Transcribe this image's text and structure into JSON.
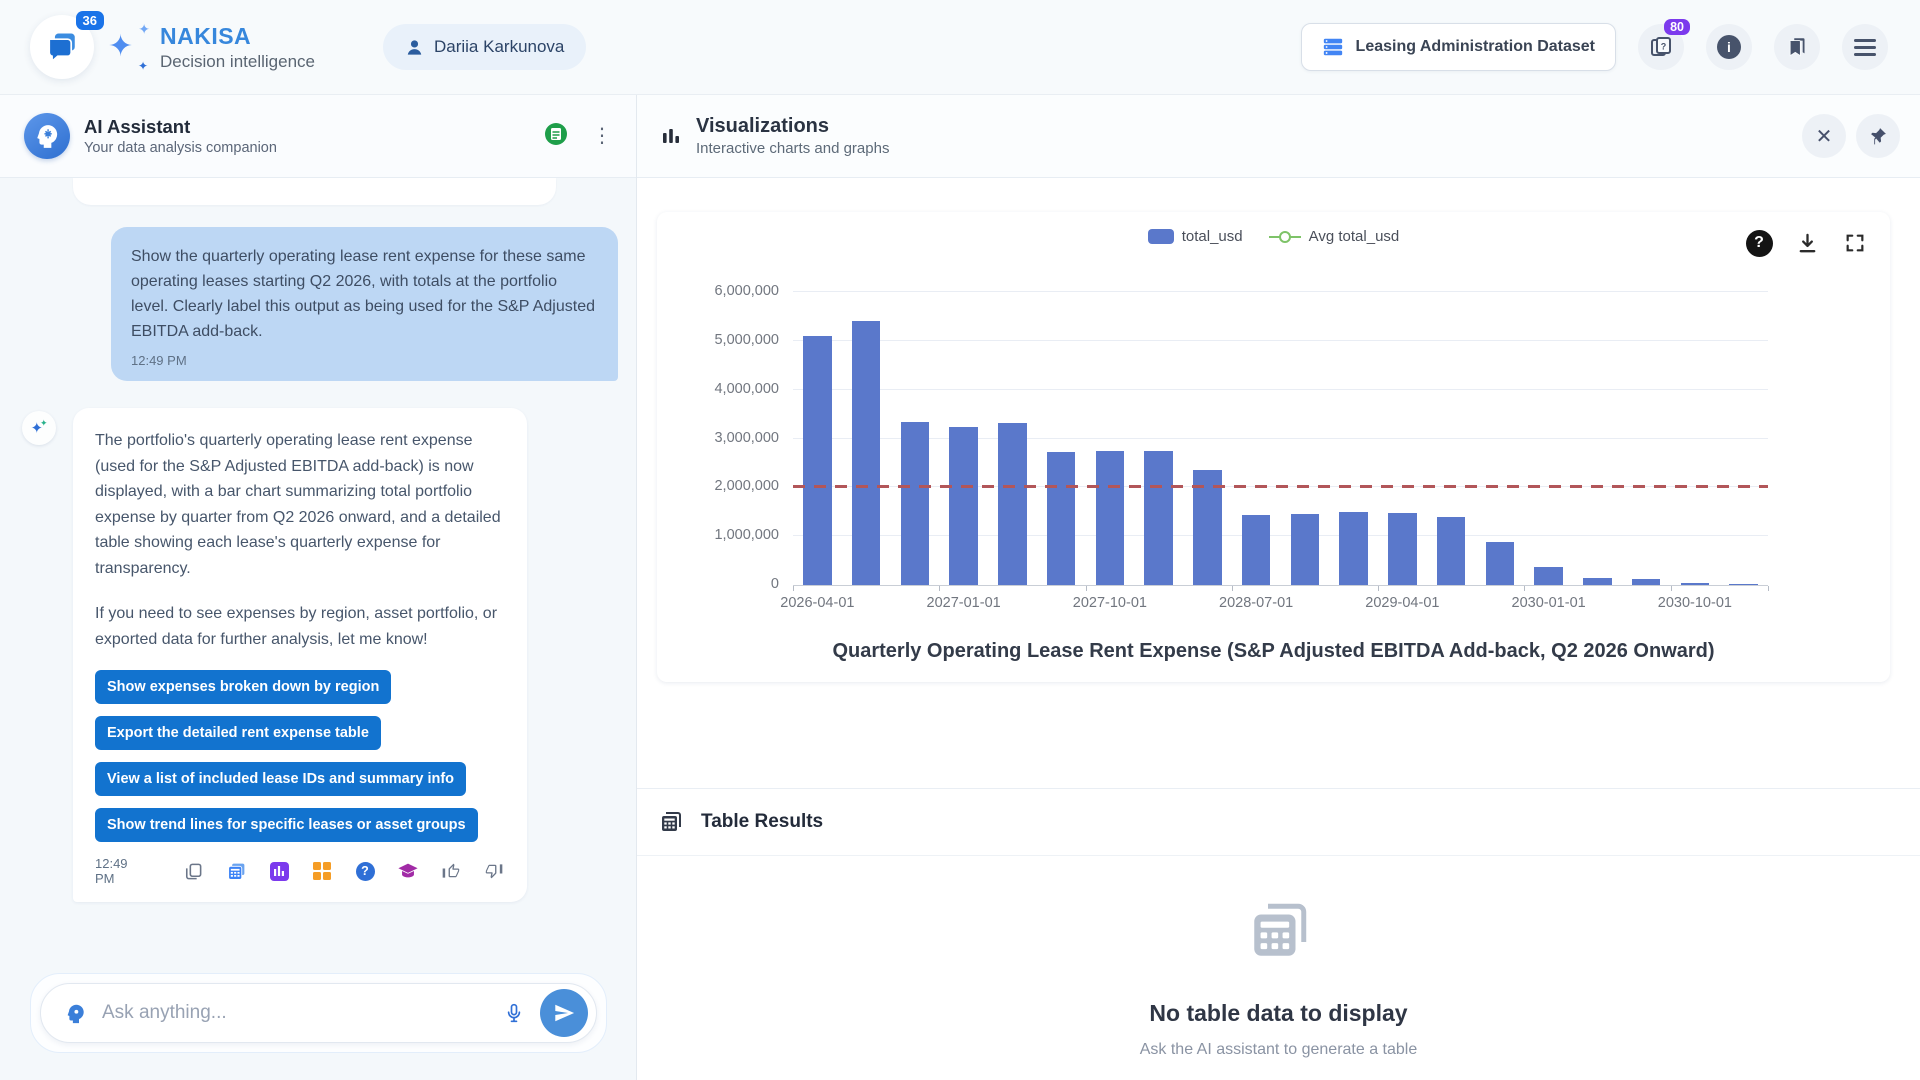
{
  "header": {
    "badge_count": "36",
    "brand": "NAKISA",
    "brand_sub": "Decision intelligence",
    "user": "Dariia Karkunova",
    "dataset_button": "Leasing Administration Dataset",
    "help_badge": "80"
  },
  "chat": {
    "title": "AI Assistant",
    "subtitle": "Your data analysis companion",
    "user_msg": "Show the quarterly operating lease rent expense for these same operating leases starting Q2 2026, with totals at the portfolio level. Clearly label this output as being used for the S&P Adjusted EBITDA add-back.",
    "user_time": "12:49 PM",
    "ai_p1": "The portfolio's quarterly operating lease rent expense (used for the S&P Adjusted EBITDA add-back) is now displayed, with a bar chart summarizing total portfolio expense by quarter from Q2 2026 onward, and a detailed table showing each lease's quarterly expense for transparency.",
    "ai_p2": "If you need to see expenses by region, asset portfolio, or exported data for further analysis, let me know!",
    "ai_time": "12:49 PM",
    "suggestions": [
      "Show expenses broken down by region",
      "Export the detailed rent expense table",
      "View a list of included lease IDs and summary info",
      "Show trend lines for specific leases or asset groups"
    ],
    "input_placeholder": "Ask anything..."
  },
  "viz": {
    "title": "Visualizations",
    "subtitle": "Interactive charts and graphs"
  },
  "table_results": {
    "title": "Table Results",
    "empty_title": "No table data to display",
    "empty_sub": "Ask the AI assistant to generate a table"
  },
  "chart_data": {
    "type": "bar",
    "title": "Quarterly Operating Lease Rent Expense (S&P Adjusted EBITDA Add-back, Q2 2026 Onward)",
    "categories": [
      "2026-04-01",
      "2026-07-01",
      "2026-10-01",
      "2027-01-01",
      "2027-04-01",
      "2027-07-01",
      "2027-10-01",
      "2028-01-01",
      "2028-04-01",
      "2028-07-01",
      "2028-10-01",
      "2029-01-01",
      "2029-04-01",
      "2029-07-01",
      "2029-10-01",
      "2030-01-01",
      "2030-04-01",
      "2030-07-01",
      "2030-10-01",
      "2031-01-01"
    ],
    "series": [
      {
        "name": "total_usd",
        "values": [
          5100000,
          5400000,
          3330000,
          3240000,
          3310000,
          2720000,
          2750000,
          2750000,
          2350000,
          1430000,
          1450000,
          1500000,
          1480000,
          1400000,
          880000,
          370000,
          150000,
          120000,
          50000,
          20000
        ]
      }
    ],
    "avg_line": {
      "name": "Avg total_usd",
      "value": 1990000
    },
    "ylim": [
      0,
      6000000
    ],
    "y_tick_step": 1000000,
    "x_tick_every": 3,
    "legend_position": "top",
    "grid": true,
    "bar_color": "#5a78cb",
    "avg_color": "#b25659"
  }
}
